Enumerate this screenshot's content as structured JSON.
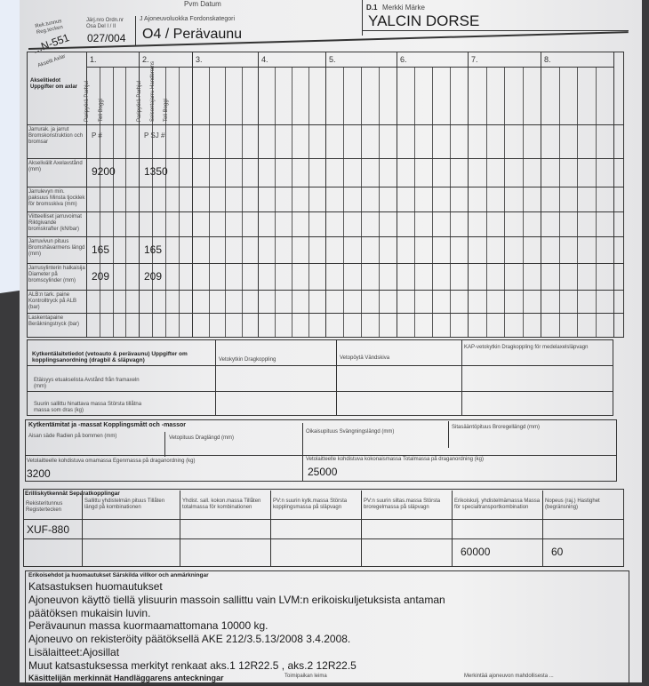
{
  "header": {
    "reg_label": "Rek.tunnus Reg.tecken",
    "reg_value": "...N-551",
    "ordn_label": "Järj.nro Ordn.nr Osa Del I / II",
    "ordn_value": "027/004",
    "category_label": "J Ajoneuvoluokka Fordonskategori",
    "category_value": "O4 / Perävaunu",
    "make_label_code": "D.1",
    "make_label": "Merkki Märke",
    "make_value": "YALCIN DORSE",
    "date_label": "Pvm Datum"
  },
  "axles": {
    "axles_label": "Akselit Axlar",
    "corner_label": "Akselitiedot Uppgifter om axlar",
    "columns": [
      "1.",
      "2.",
      "3.",
      "4.",
      "5.",
      "6.",
      "7.",
      "8."
    ],
    "col1_sub": [
      "Paripyörä Parhjul",
      "Teli Boggi"
    ],
    "col2_sub": [
      "Paripyörä Parhjul",
      "Seisontajarru Handbroms",
      "Teli Boggi"
    ],
    "rows": [
      {
        "label": "Jarrurak. ja jarrut Bromskonstruktion och bromsar",
        "c1": "P   #",
        "c2": "P   SJ   #"
      },
      {
        "label": "Akselivälit Axelavstånd (mm)",
        "c1": "9200",
        "c2": "1350"
      },
      {
        "label": "Jarrulevyn min. paksuus Minsta tjocklek för bromsskiva (mm)",
        "c1": "",
        "c2": ""
      },
      {
        "label": "Viitteelliset jarruvoimat Riktgivande bromskrafter (kN/bar)",
        "c1": "",
        "c2": ""
      },
      {
        "label": "Jarruvivun pituus Bromshävarmens längd (mm)",
        "c1": "165",
        "c2": "165"
      },
      {
        "label": "Jarrusylinterin halkaisija Diameter på bromscylinder (mm)",
        "c1": "209",
        "c2": "209"
      },
      {
        "label": "ALB:n tark. paine Kontrolltryck på ALB (bar)",
        "c1": "",
        "c2": ""
      },
      {
        "label": "Laskentapaine Beräkningstryck (bar)",
        "c1": "",
        "c2": ""
      }
    ]
  },
  "coupling": {
    "title": "Kytkentälaitetiedot (vetoauto & perävaunu) Uppgifter om kopplingsanordning (dragbil & släpvagn)",
    "col_a": "Vetokytkin Dragkoppling",
    "col_b": "Vetopöytä Vändskiva",
    "col_c": "KAP-vetokytkin Dragkoppling för medelaxelsläpvagn",
    "row1": "Etäisyys etuakselista Avstånd från framaxeln (mm)",
    "row2": "Suurin sallittu hinattava massa Största tillåtna massa som dras (kg)"
  },
  "dims": {
    "title": "Kytkentämitat ja -massat Kopplingsmått och -massor",
    "a": "Aisan säde Radien på bommen (mm)",
    "b": "Vetopituus Draglängd (mm)",
    "c": "Oikaisupituus Svängningslängd (mm)",
    "d": "Sitasääntöpituus Broregellängd (mm)",
    "own_label": "Vetolaitteelle kohdistuva omamassa Egenmassa på draganordning (kg)",
    "own_value": "3200",
    "total_label": "Vetolaitteelle kohdistuva kokonaismassa Totalmassa på draganordning (kg)",
    "total_value": "25000"
  },
  "separate": {
    "title": "Erilliskytkennät Separatkopplingar",
    "headers": [
      "Rekisteritunnus Registertecken",
      "Sallittu yhdistelmän pituus Tillåten längd på kombinationen",
      "Yhdist. sall. kokon.massa Tillåten totalmassa för kombinationen",
      "PV:n suurin kytk.massa Största kopplingsmassa på släpvagn",
      "PV:n suurin siltas.massa Största broregelmassa på släpvagn",
      "Erikoiskulj. yhdistelmämassa Massa för specialtransportkombination",
      "Nopeus (raj.) Hastighet (begränsning)"
    ],
    "reg_value": "XUF-880",
    "special_mass": "60000",
    "speed": "60"
  },
  "remarks": {
    "title": "Erikoisehdot ja huomautukset Särskilda villkor och anmärkningar",
    "lines": [
      "Katsastuksen huomautukset",
      "Ajoneuvon käyttö tiellä ylisuurin massoin sallittu vain LVM:n erikoiskuljetuksista antaman",
      "päätöksen mukaisin luvin.",
      "Perävaunun massa kuormaamattomana 10000 kg.",
      "Ajoneuvo on rekisteröity päätöksellä AKE 212/3.5.13/2008  3.4.2008.",
      "Lisälaitteet:Ajosillat",
      "Muut katsastuksessa merkityt renkaat aks.1 12R22.5 , aks.2 12R22.5"
    ]
  },
  "footer": {
    "handler": "Käsittelijän merkinnät Handläggarens anteckningar",
    "stamp": "Toimipaikan leima",
    "note": "Merkintää ajoneuvon mahdollisesta ..."
  }
}
